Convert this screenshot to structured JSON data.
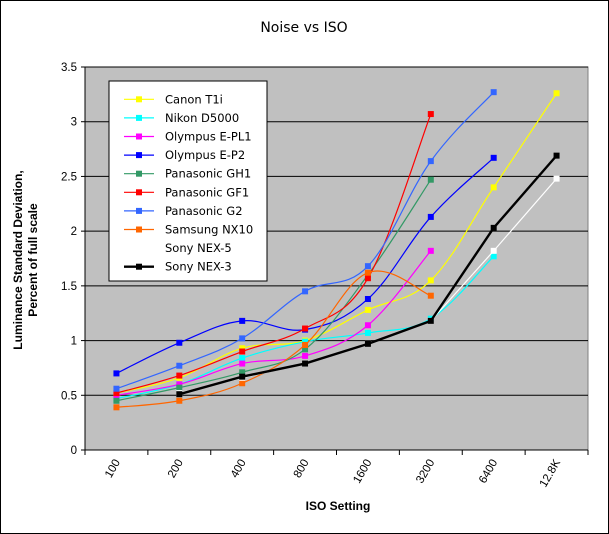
{
  "chart_data": {
    "type": "line",
    "title": "Noise vs ISO",
    "xlabel": "ISO Setting",
    "ylabel": [
      "Luminance Standard Deviation,",
      "Percent of full scale"
    ],
    "categories": [
      "100",
      "200",
      "400",
      "800",
      "1600",
      "3200",
      "6400",
      "12.8K"
    ],
    "ylim": [
      0,
      3.5
    ],
    "yticks": [
      "0",
      "0.5",
      "1",
      "1.5",
      "2",
      "2.5",
      "3",
      "3.5"
    ],
    "legend_position": "top-left",
    "series": [
      {
        "name": "Canon T1i",
        "color": "#ffff00",
        "values": [
          0.52,
          0.66,
          0.93,
          1.0,
          1.28,
          1.55,
          2.4,
          3.26
        ]
      },
      {
        "name": "Nikon D5000",
        "color": "#00ffff",
        "values": [
          0.47,
          0.6,
          0.84,
          0.99,
          1.07,
          1.2,
          1.77,
          null
        ]
      },
      {
        "name": "Olympus E-PL1",
        "color": "#ff00ff",
        "values": [
          0.5,
          0.6,
          0.79,
          0.86,
          1.14,
          1.82,
          null,
          null
        ]
      },
      {
        "name": "Olympus E-P2",
        "color": "#0000ff",
        "values": [
          0.7,
          0.98,
          1.18,
          1.1,
          1.38,
          2.13,
          2.67,
          null
        ]
      },
      {
        "name": "Panasonic GH1",
        "color": "#339966",
        "values": [
          0.45,
          0.57,
          0.71,
          0.92,
          1.6,
          2.47,
          null,
          null
        ]
      },
      {
        "name": "Panasonic GF1",
        "color": "#ff0000",
        "values": [
          0.52,
          0.68,
          0.9,
          1.11,
          1.57,
          3.07,
          null,
          null
        ]
      },
      {
        "name": "Panasonic G2",
        "color": "#3366ff",
        "values": [
          0.56,
          0.77,
          1.02,
          1.45,
          1.68,
          2.64,
          3.27,
          null
        ]
      },
      {
        "name": "Samsung NX10",
        "color": "#ff6600",
        "values": [
          0.39,
          0.45,
          0.61,
          0.96,
          1.62,
          1.41,
          null,
          null
        ]
      },
      {
        "name": "Sony NEX-5",
        "color": "#ffffff",
        "values": [
          null,
          0.52,
          0.66,
          0.79,
          0.97,
          1.18,
          1.82,
          2.48
        ]
      },
      {
        "name": "Sony NEX-3",
        "color": "#000000",
        "values": [
          null,
          0.51,
          0.67,
          0.79,
          0.97,
          1.18,
          2.03,
          2.69
        ]
      }
    ]
  }
}
